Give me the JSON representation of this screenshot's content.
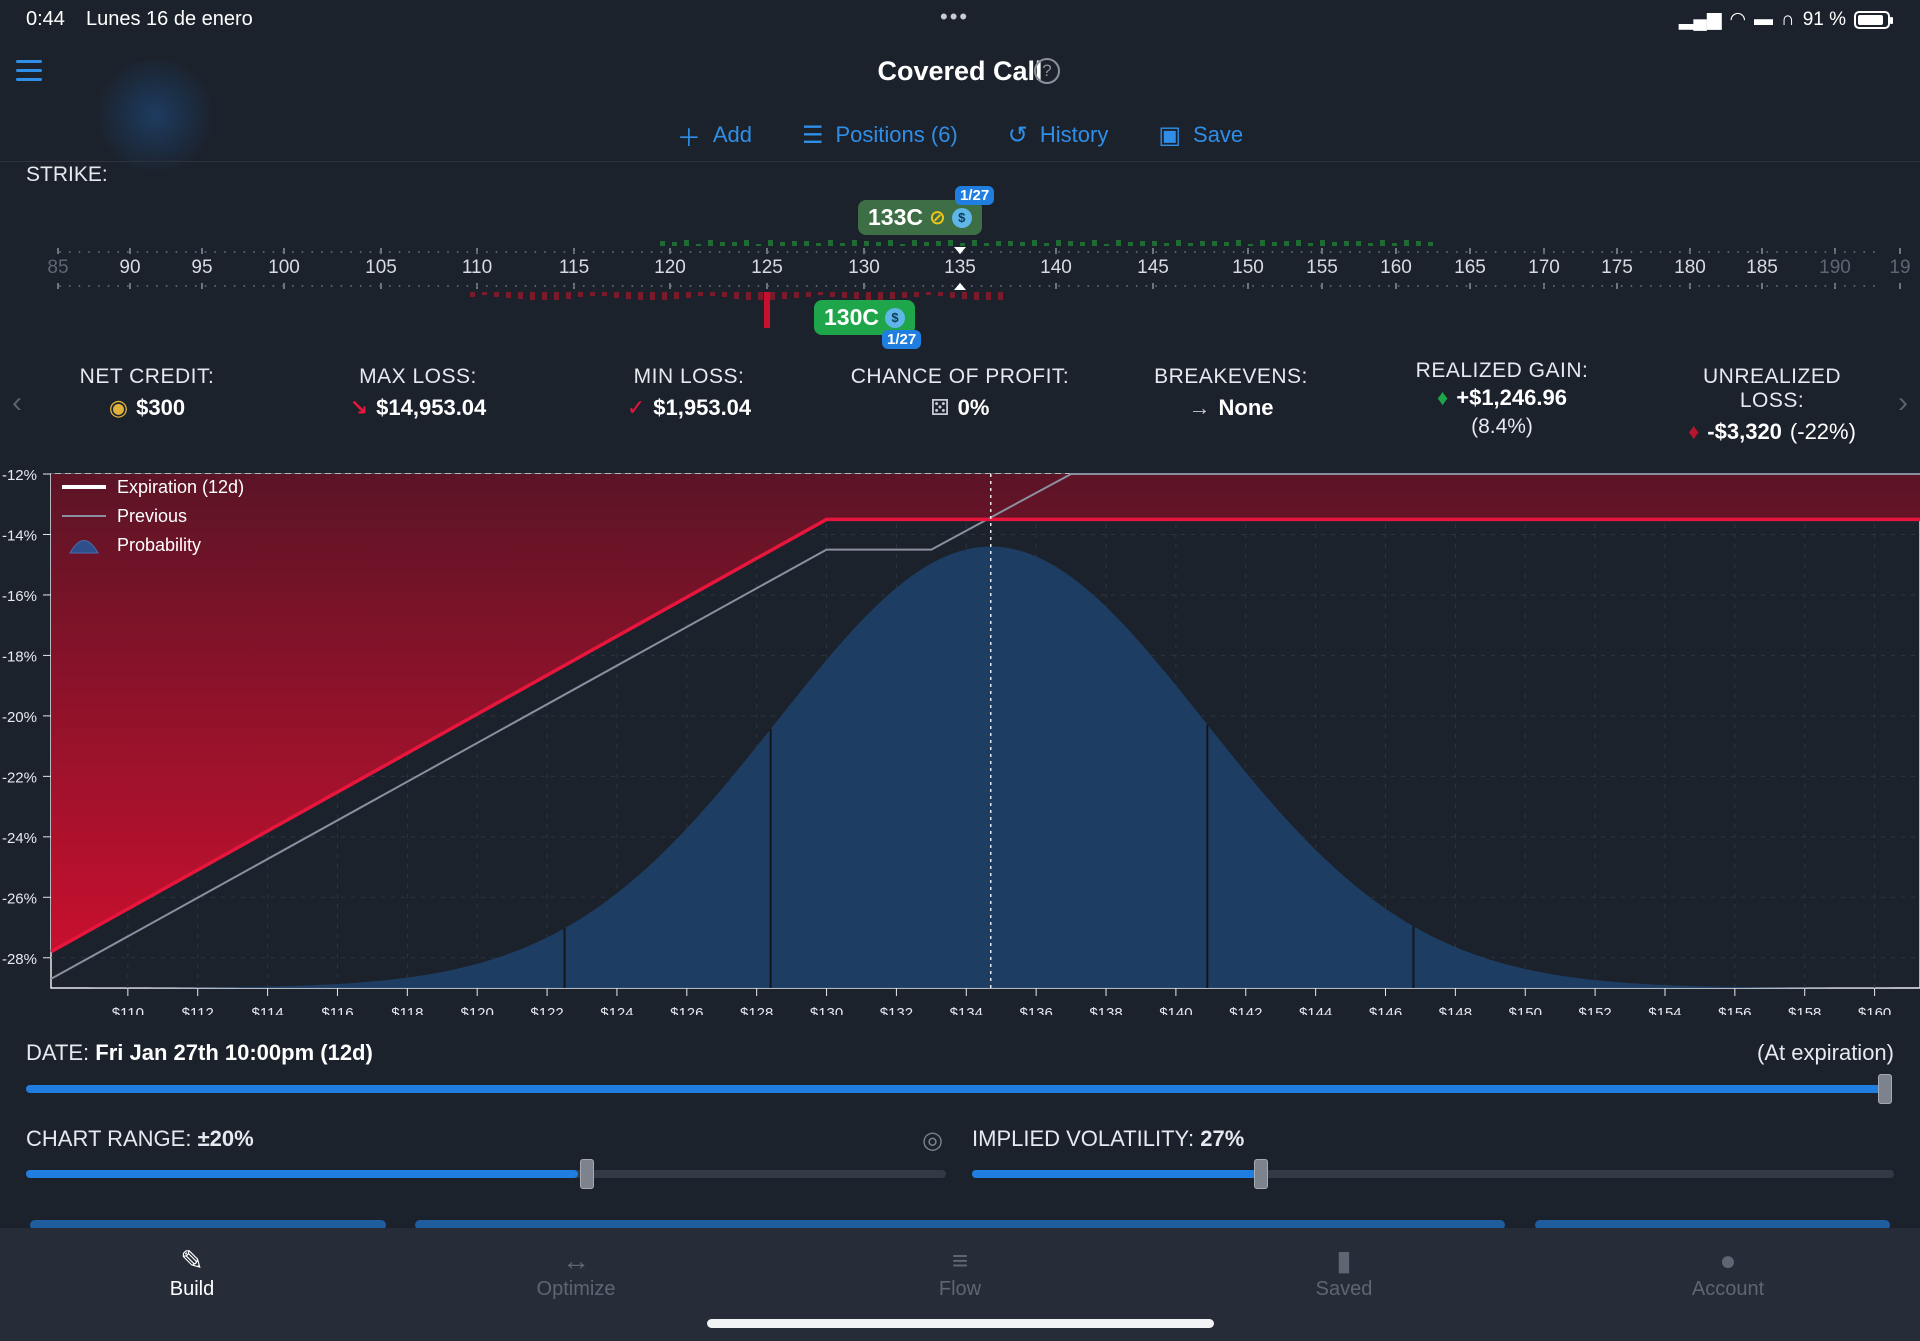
{
  "status": {
    "time": "0:44",
    "date": "Lunes 16 de enero",
    "battery": "91 %",
    "battery_level": 0.91
  },
  "header": {
    "title": "Covered Call",
    "toolbar": [
      {
        "icon": "plus-icon",
        "label": "Add"
      },
      {
        "icon": "list-icon",
        "label": "Positions (6)"
      },
      {
        "icon": "history-icon",
        "label": "History"
      },
      {
        "icon": "save-icon",
        "label": "Save"
      }
    ]
  },
  "strike": {
    "label": "STRIKE:",
    "ticks": [
      "85",
      "90",
      "95",
      "100",
      "105",
      "110",
      "115",
      "120",
      "125",
      "130",
      "135",
      "140",
      "145",
      "150",
      "155",
      "160",
      "165",
      "170",
      "175",
      "180",
      "185",
      "190",
      "19"
    ],
    "dim_ticks": [
      "85",
      "190",
      "19"
    ],
    "upper_pill": {
      "label": "133C",
      "date": "1/27"
    },
    "lower_pill": {
      "label": "130C",
      "date": "1/27"
    }
  },
  "metrics": {
    "net_credit": {
      "label": "NET CREDIT:",
      "value": "$300"
    },
    "max_loss": {
      "label": "MAX LOSS:",
      "value": "$14,953.04"
    },
    "min_loss": {
      "label": "MIN LOSS:",
      "value": "$1,953.04"
    },
    "chance_of_profit": {
      "label": "CHANCE OF PROFIT:",
      "value": "0%"
    },
    "breakevens": {
      "label": "BREAKEVENS:",
      "value": "None"
    },
    "realized_gain": {
      "label": "REALIZED GAIN:",
      "value": "+$1,246.96",
      "sub": "(8.4%)"
    },
    "unrealized_loss": {
      "label": "UNREALIZED LOSS:",
      "value": "-$3,320",
      "sub": "(-22%)"
    }
  },
  "chart_data": {
    "type": "area",
    "legend": [
      "Expiration (12d)",
      "Previous",
      "Probability"
    ],
    "legend_position": "top-left",
    "x_ticks": [
      "$110",
      "$112",
      "$114",
      "$116",
      "$118",
      "$120",
      "$122",
      "$124",
      "$126",
      "$128",
      "$130",
      "$132",
      "$134",
      "$136",
      "$138",
      "$140",
      "$142",
      "$144",
      "$146",
      "$148",
      "$150",
      "$152",
      "$154",
      "$156",
      "$158",
      "$160"
    ],
    "y_ticks": [
      "-12%",
      "-14%",
      "-16%",
      "-18%",
      "-20%",
      "-22%",
      "-24%",
      "-26%",
      "-28%"
    ],
    "xlim": [
      107.8,
      161.3
    ],
    "ylim": [
      -29.0,
      -12.0
    ],
    "current_price": 134.7,
    "series": [
      {
        "name": "Expiration (12d)",
        "color": "#e8153c",
        "x": [
          107.8,
          130,
          161.3
        ],
        "y": [
          -27.8,
          -13.5,
          -13.5
        ]
      },
      {
        "name": "Previous",
        "color": "#8b90a0",
        "x": [
          107.8,
          130,
          133,
          137,
          161.3
        ],
        "y": [
          -28.7,
          -14.5,
          -14.5,
          -11.8,
          -11.8
        ]
      },
      {
        "name": "Probability",
        "color": "#1d3f66",
        "distribution": {
          "mean": 134.7,
          "sd": 6.1,
          "peak_pct": -14.4
        }
      }
    ]
  },
  "date_control": {
    "label": "DATE:",
    "value": "Fri Jan 27th 10:00pm (12d)",
    "right": "(At expiration)",
    "level": 1.0
  },
  "chart_range": {
    "label": "CHART RANGE:",
    "value": "±20%",
    "level": 0.6
  },
  "implied_volatility": {
    "label": "IMPLIED VOLATILITY:",
    "value": "27%",
    "level": 0.31
  },
  "tabs": [
    {
      "label": "Build",
      "icon": "build-icon",
      "active": true
    },
    {
      "label": "Optimize",
      "icon": "optimize-icon",
      "active": false
    },
    {
      "label": "Flow",
      "icon": "flow-icon",
      "active": false
    },
    {
      "label": "Saved",
      "icon": "saved-icon",
      "active": false
    },
    {
      "label": "Account",
      "icon": "account-icon",
      "active": false
    }
  ]
}
